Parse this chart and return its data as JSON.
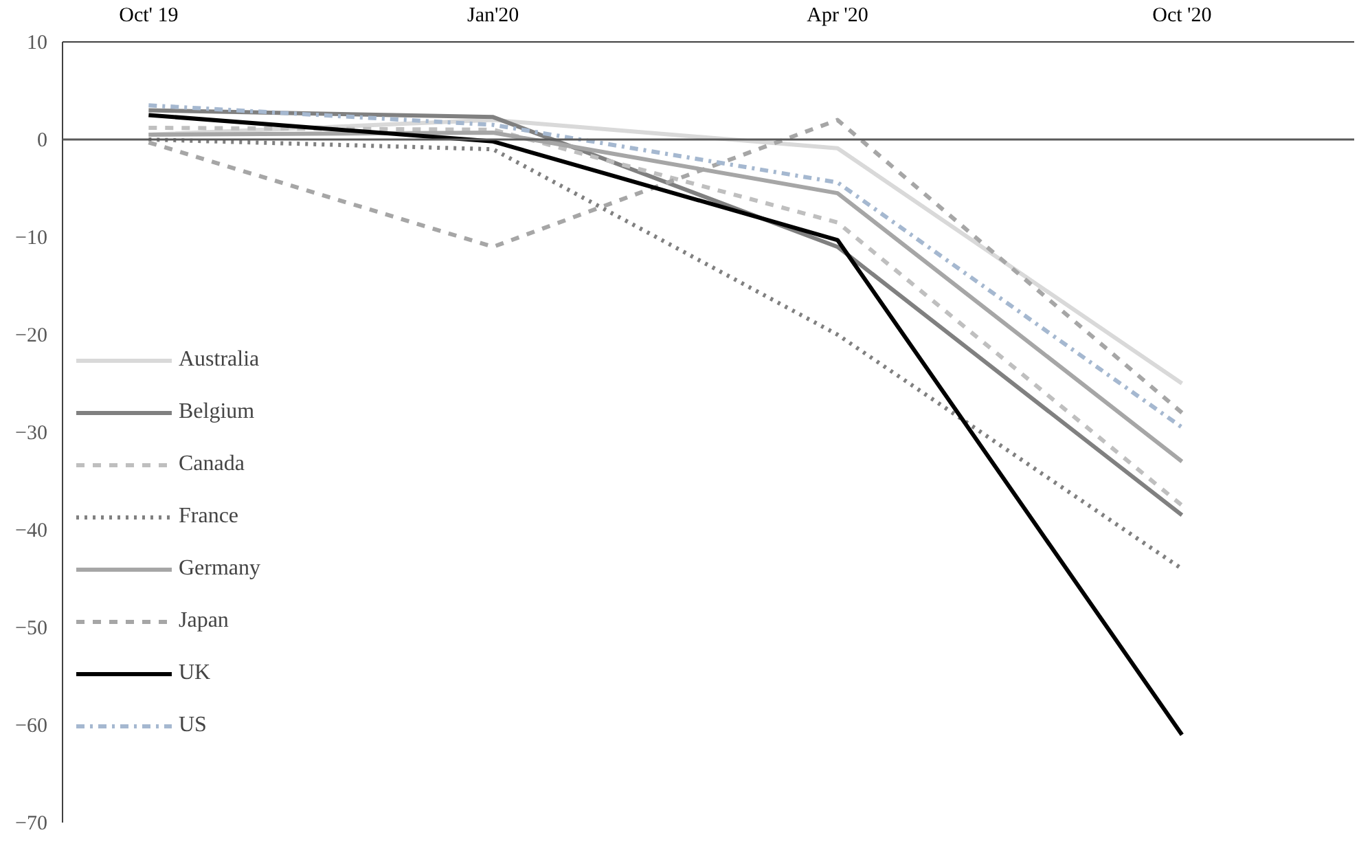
{
  "chart_data": {
    "type": "line",
    "categories": [
      "Oct' 19",
      "Jan'20",
      "Apr '20",
      "Oct '20"
    ],
    "ylim": [
      -70,
      10
    ],
    "yticks": [
      -70,
      -60,
      -50,
      -40,
      -30,
      -20,
      -10,
      0,
      10
    ],
    "legend": "left",
    "marker": "none",
    "series": [
      {
        "name": "Australia",
        "color": "#d9d9d9",
        "line_style": "solid",
        "values": [
          0.5,
          2,
          -0.9,
          -25
        ]
      },
      {
        "name": "Belgium",
        "color": "#808080",
        "line_style": "solid",
        "values": [
          3,
          2.3,
          -11,
          -38.5
        ]
      },
      {
        "name": "Canada",
        "color": "#bfbfbf",
        "line_style": "dashed",
        "values": [
          1.2,
          1,
          -8.5,
          -37.5
        ]
      },
      {
        "name": "France",
        "color": "#808080",
        "line_style": "dotted",
        "values": [
          0,
          -1,
          -20,
          -44
        ]
      },
      {
        "name": "Germany",
        "color": "#a6a6a6",
        "line_style": "solid",
        "values": [
          0.5,
          0.7,
          -5.5,
          -33
        ]
      },
      {
        "name": "Japan",
        "color": "#a6a6a6",
        "line_style": "dashed",
        "values": [
          -0.3,
          -11,
          2,
          -28
        ]
      },
      {
        "name": "UK",
        "color": "#000000",
        "line_style": "solid",
        "values": [
          2.5,
          -0.2,
          -10.3,
          -61
        ]
      },
      {
        "name": "US",
        "color": "#a5b8d0",
        "line_style": "dashdot",
        "values": [
          3.5,
          1.5,
          -4.4,
          -29.5
        ]
      }
    ]
  }
}
